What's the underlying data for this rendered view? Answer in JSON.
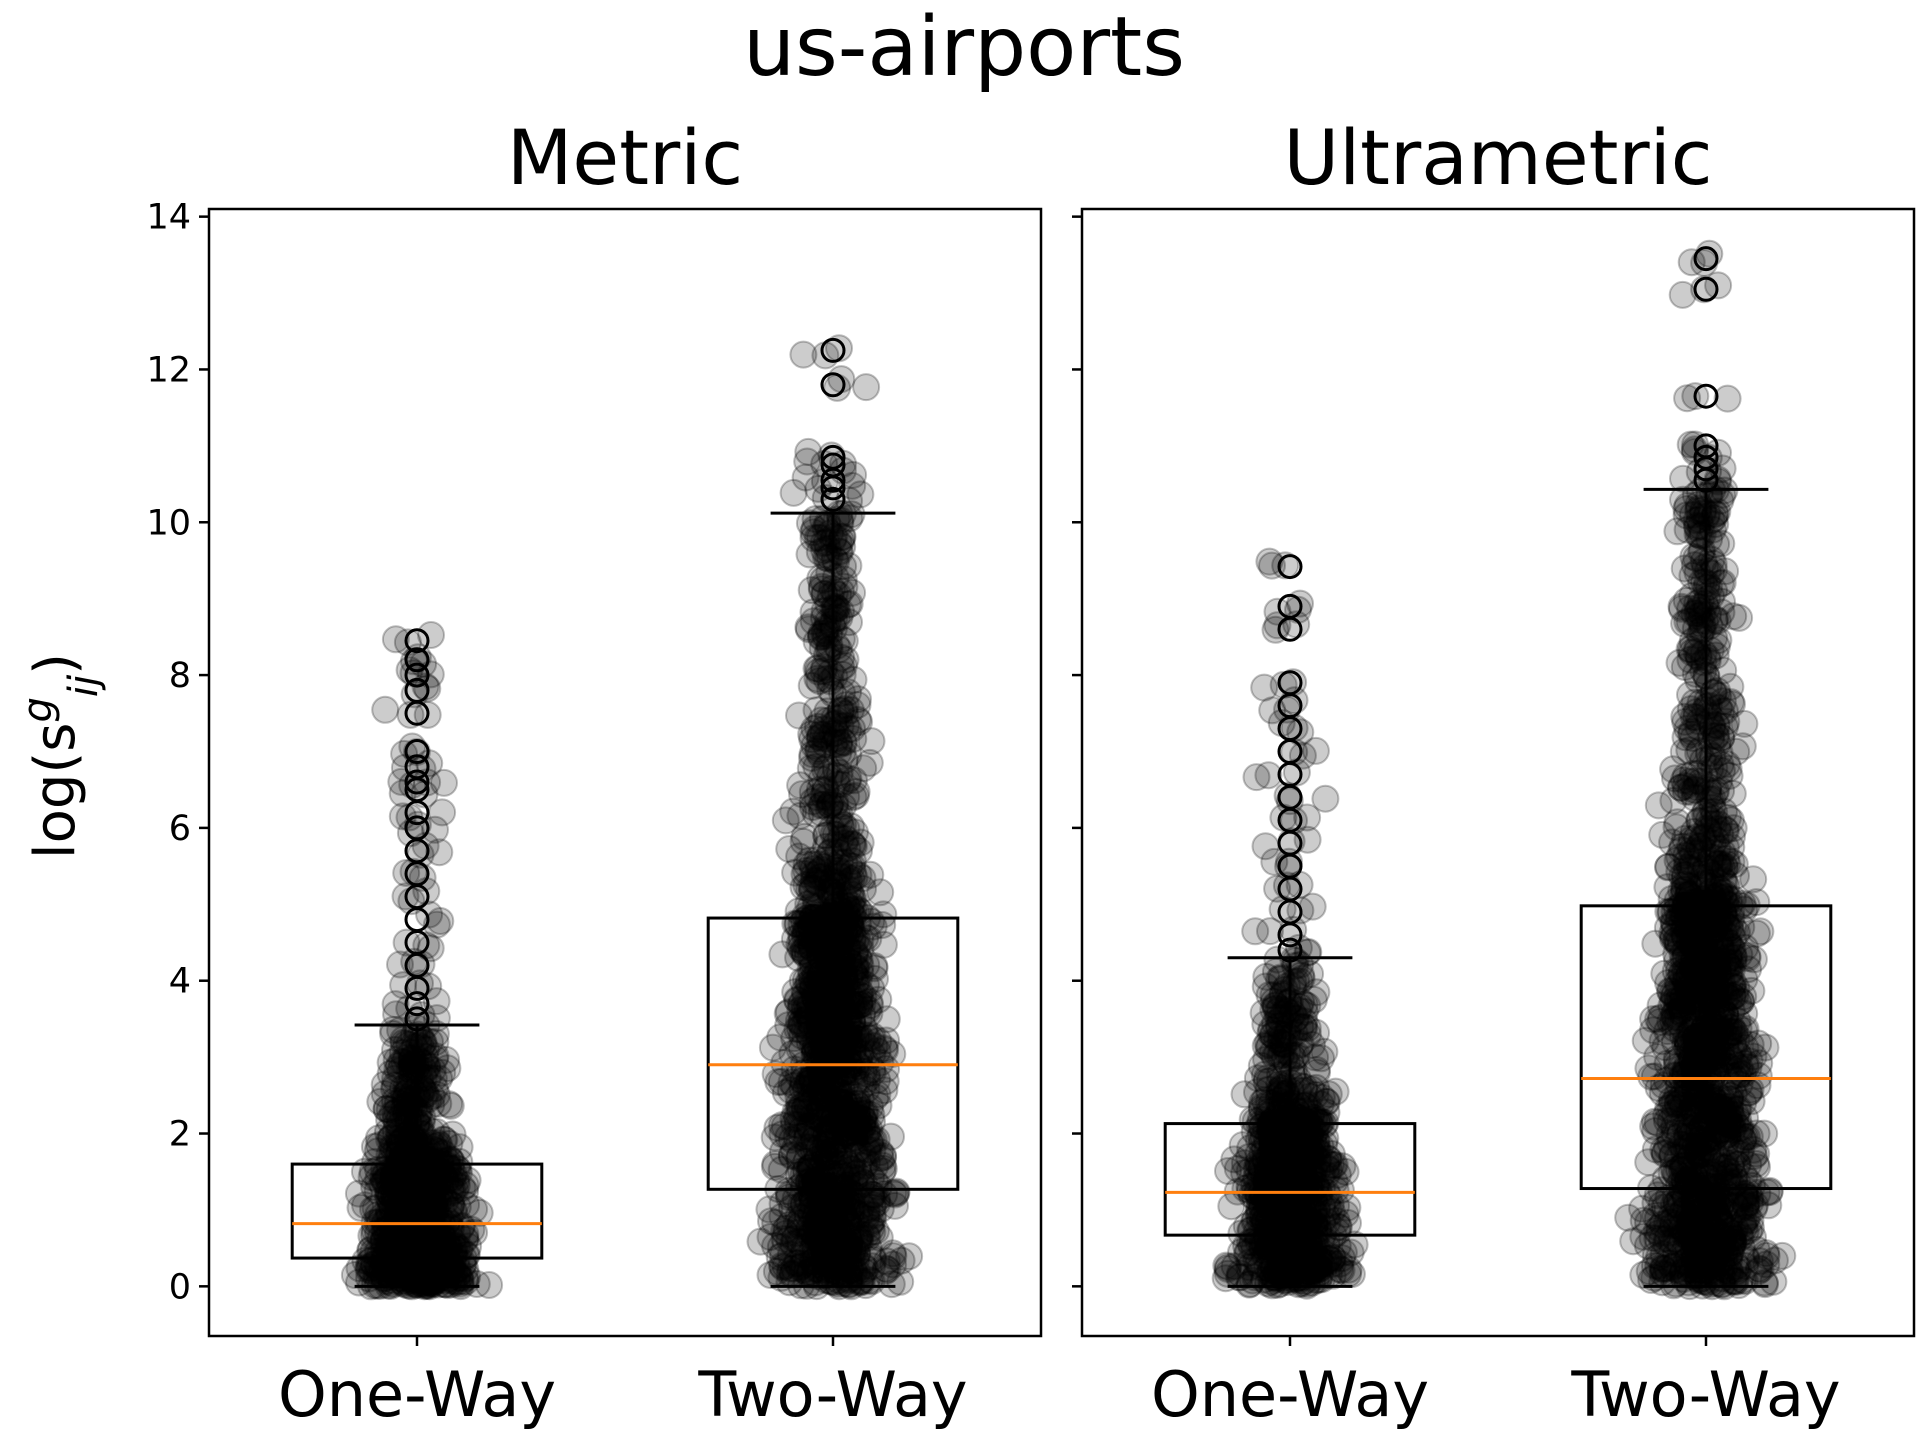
{
  "figure": {
    "suptitle": "us-airports",
    "ylabel": "log(s",
    "ylabel_sup": "g",
    "ylabel_sub": "ij",
    "ylabel_close": ")",
    "colors": {
      "median": "#ff7f0e",
      "box": "#000000",
      "points": "#000000",
      "background": "#ffffff"
    }
  },
  "chart_data": [
    {
      "type": "box",
      "title": "Metric",
      "categories": [
        "One-Way",
        "Two-Way"
      ],
      "ylim": [
        -0.65,
        14.1
      ],
      "yticks": [
        0,
        2,
        4,
        6,
        8,
        10,
        12,
        14
      ],
      "grid": false,
      "overlay": "jittered scatter of all values, semi-transparent black",
      "boxes": [
        {
          "category": "One-Way",
          "whislo": 0,
          "q1": 0.37,
          "med": 0.82,
          "q3": 1.6,
          "whishi": 3.42,
          "fliers": [
            3.5,
            3.7,
            3.9,
            4.2,
            4.5,
            4.8,
            5.1,
            5.4,
            5.7,
            6.0,
            6.2,
            6.5,
            6.6,
            6.8,
            7.0,
            7.5,
            7.8,
            8.0,
            8.2,
            8.45
          ]
        },
        {
          "category": "Two-Way",
          "whislo": 0,
          "q1": 1.27,
          "med": 2.9,
          "q3": 4.82,
          "whishi": 10.12,
          "fliers": [
            10.3,
            10.45,
            10.55,
            10.75,
            10.85,
            11.8,
            12.25
          ]
        }
      ],
      "scatter_extent": {
        "One-Way_max": 8.45,
        "Two-Way_max": 12.25
      }
    },
    {
      "type": "box",
      "title": "Ultrametric",
      "categories": [
        "One-Way",
        "Two-Way"
      ],
      "ylim": [
        -0.65,
        14.1
      ],
      "yticks": [
        0,
        2,
        4,
        6,
        8,
        10,
        12,
        14
      ],
      "grid": false,
      "overlay": "jittered scatter of all values, semi-transparent black",
      "boxes": [
        {
          "category": "One-Way",
          "whislo": 0,
          "q1": 0.67,
          "med": 1.23,
          "q3": 2.13,
          "whishi": 4.3,
          "fliers": [
            4.4,
            4.6,
            4.9,
            5.2,
            5.5,
            5.8,
            6.1,
            6.4,
            6.7,
            7.0,
            7.3,
            7.6,
            7.9,
            8.6,
            8.9,
            9.42
          ]
        },
        {
          "category": "Two-Way",
          "whislo": 0,
          "q1": 1.28,
          "med": 2.72,
          "q3": 4.98,
          "whishi": 10.43,
          "fliers": [
            10.55,
            10.7,
            10.85,
            11.0,
            11.65,
            13.05,
            13.45
          ]
        }
      ],
      "scatter_extent": {
        "One-Way_max": 9.42,
        "Two-Way_max": 13.45
      }
    }
  ]
}
